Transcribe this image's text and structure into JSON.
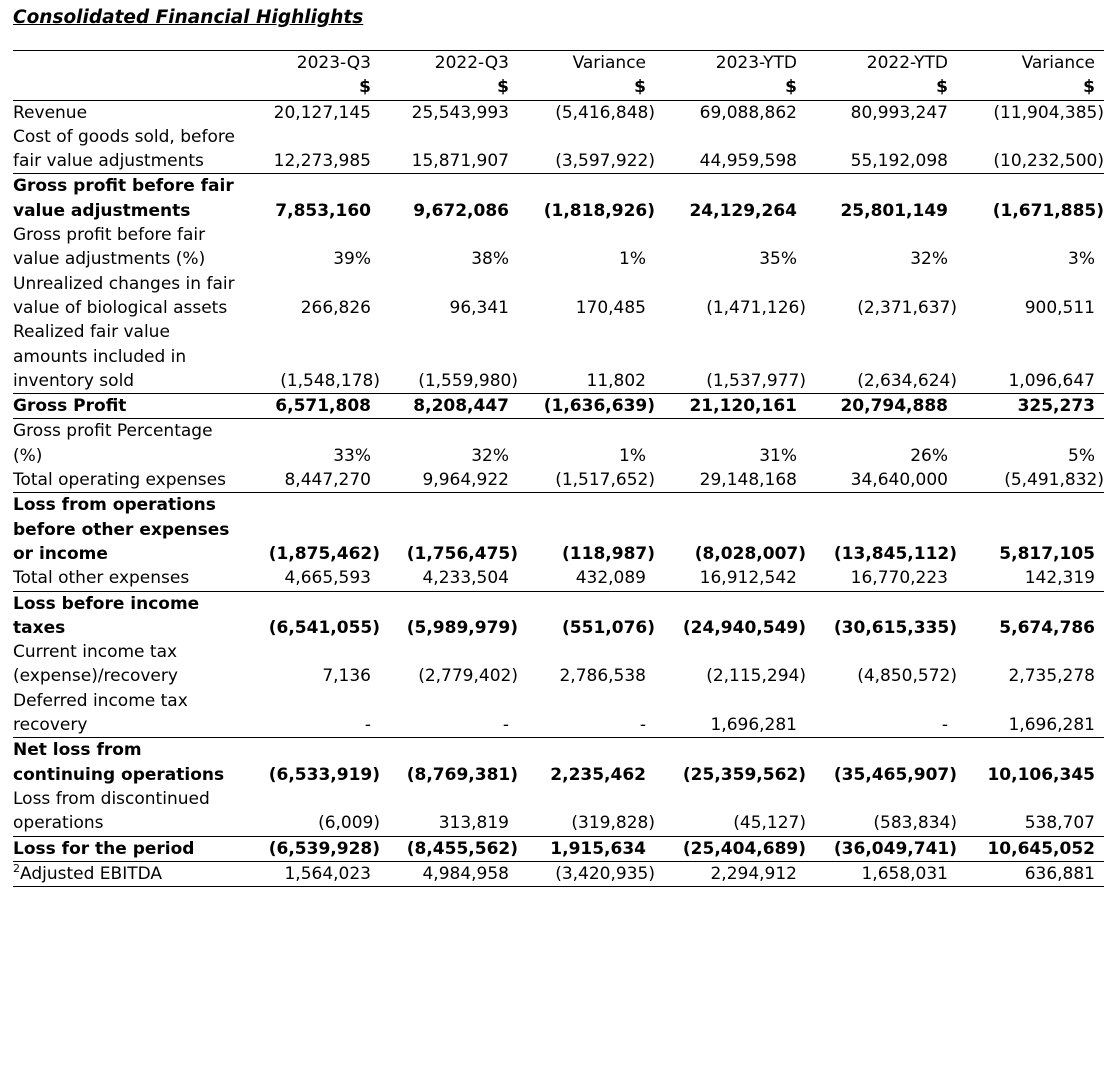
{
  "title": "Consolidated Financial Highlights",
  "table": {
    "columns": [
      "2023-Q3",
      "2022-Q3",
      "Variance",
      "2023-YTD",
      "2022-YTD",
      "Variance"
    ],
    "currency": [
      "$",
      "$",
      "$",
      "$",
      "$",
      "$"
    ],
    "rows": [
      {
        "label": "Revenue",
        "cells": [
          "20,127,145",
          "25,543,993",
          "(5,416,848)",
          "69,088,862",
          "80,993,247",
          "(11,904,385)"
        ]
      },
      {
        "label": "Cost of goods sold, before fair value adjustments",
        "cells": [
          "12,273,985",
          "15,871,907",
          "(3,597,922)",
          "44,959,598",
          "55,192,098",
          "(10,232,500)"
        ]
      },
      {
        "label": "Gross profit before fair value adjustments",
        "cells": [
          "7,853,160",
          "9,672,086",
          "(1,818,926)",
          "24,129,264",
          "25,801,149",
          "(1,671,885)"
        ]
      },
      {
        "label": "Gross profit before fair value adjustments (%)",
        "cells": [
          "39%",
          "38%",
          "1%",
          "35%",
          "32%",
          "3%"
        ]
      },
      {
        "label": "Unrealized changes in fair value of biological assets",
        "cells": [
          "266,826",
          "96,341",
          "170,485",
          "(1,471,126)",
          "(2,371,637)",
          "900,511"
        ]
      },
      {
        "label": "Realized fair value amounts included in inventory sold",
        "cells": [
          "(1,548,178)",
          "(1,559,980)",
          "11,802",
          "(1,537,977)",
          "(2,634,624)",
          "1,096,647"
        ]
      },
      {
        "label": "Gross Profit",
        "cells": [
          "6,571,808",
          "8,208,447",
          "(1,636,639)",
          "21,120,161",
          "20,794,888",
          "325,273"
        ]
      },
      {
        "label": "Gross profit Percentage (%)",
        "cells": [
          "33%",
          "32%",
          "1%",
          "31%",
          "26%",
          "5%"
        ]
      },
      {
        "label": "Total operating expenses",
        "cells": [
          "8,447,270",
          "9,964,922",
          "(1,517,652)",
          "29,148,168",
          "34,640,000",
          "(5,491,832)"
        ]
      },
      {
        "label": "Loss from operations before other expenses or income",
        "cells": [
          "(1,875,462)",
          "(1,756,475)",
          "(118,987)",
          "(8,028,007)",
          "(13,845,112)",
          "5,817,105"
        ]
      },
      {
        "label": "Total other expenses",
        "cells": [
          "4,665,593",
          "4,233,504",
          "432,089",
          "16,912,542",
          "16,770,223",
          "142,319"
        ]
      },
      {
        "label": "Loss before income taxes",
        "cells": [
          "(6,541,055)",
          "(5,989,979)",
          "(551,076)",
          "(24,940,549)",
          "(30,615,335)",
          "5,674,786"
        ]
      },
      {
        "label": "Current income tax (expense)/recovery",
        "cells": [
          "7,136",
          "(2,779,402)",
          "2,786,538",
          "(2,115,294)",
          "(4,850,572)",
          "2,735,278"
        ]
      },
      {
        "label": "Deferred income tax recovery",
        "cells": [
          "-",
          "-",
          "-",
          "1,696,281",
          "-",
          "1,696,281"
        ]
      },
      {
        "label": "Net loss from continuing operations",
        "cells": [
          "(6,533,919)",
          "(8,769,381)",
          "2,235,462",
          "(25,359,562)",
          "(35,465,907)",
          "10,106,345"
        ]
      },
      {
        "label": "Loss from discontinued operations",
        "cells": [
          "(6,009)",
          "313,819",
          "(319,828)",
          "(45,127)",
          "(583,834)",
          "538,707"
        ]
      },
      {
        "label": "Loss for the period",
        "cells": [
          "(6,539,928)",
          "(8,455,562)",
          "1,915,634",
          "(25,404,689)",
          "(36,049,741)",
          "10,645,052"
        ]
      },
      {
        "label": "Adjusted EBITDA",
        "note": "2",
        "cells": [
          "1,564,023",
          "4,984,958",
          "(3,420,935)",
          "2,294,912",
          "1,658,031",
          "636,881"
        ]
      }
    ]
  }
}
